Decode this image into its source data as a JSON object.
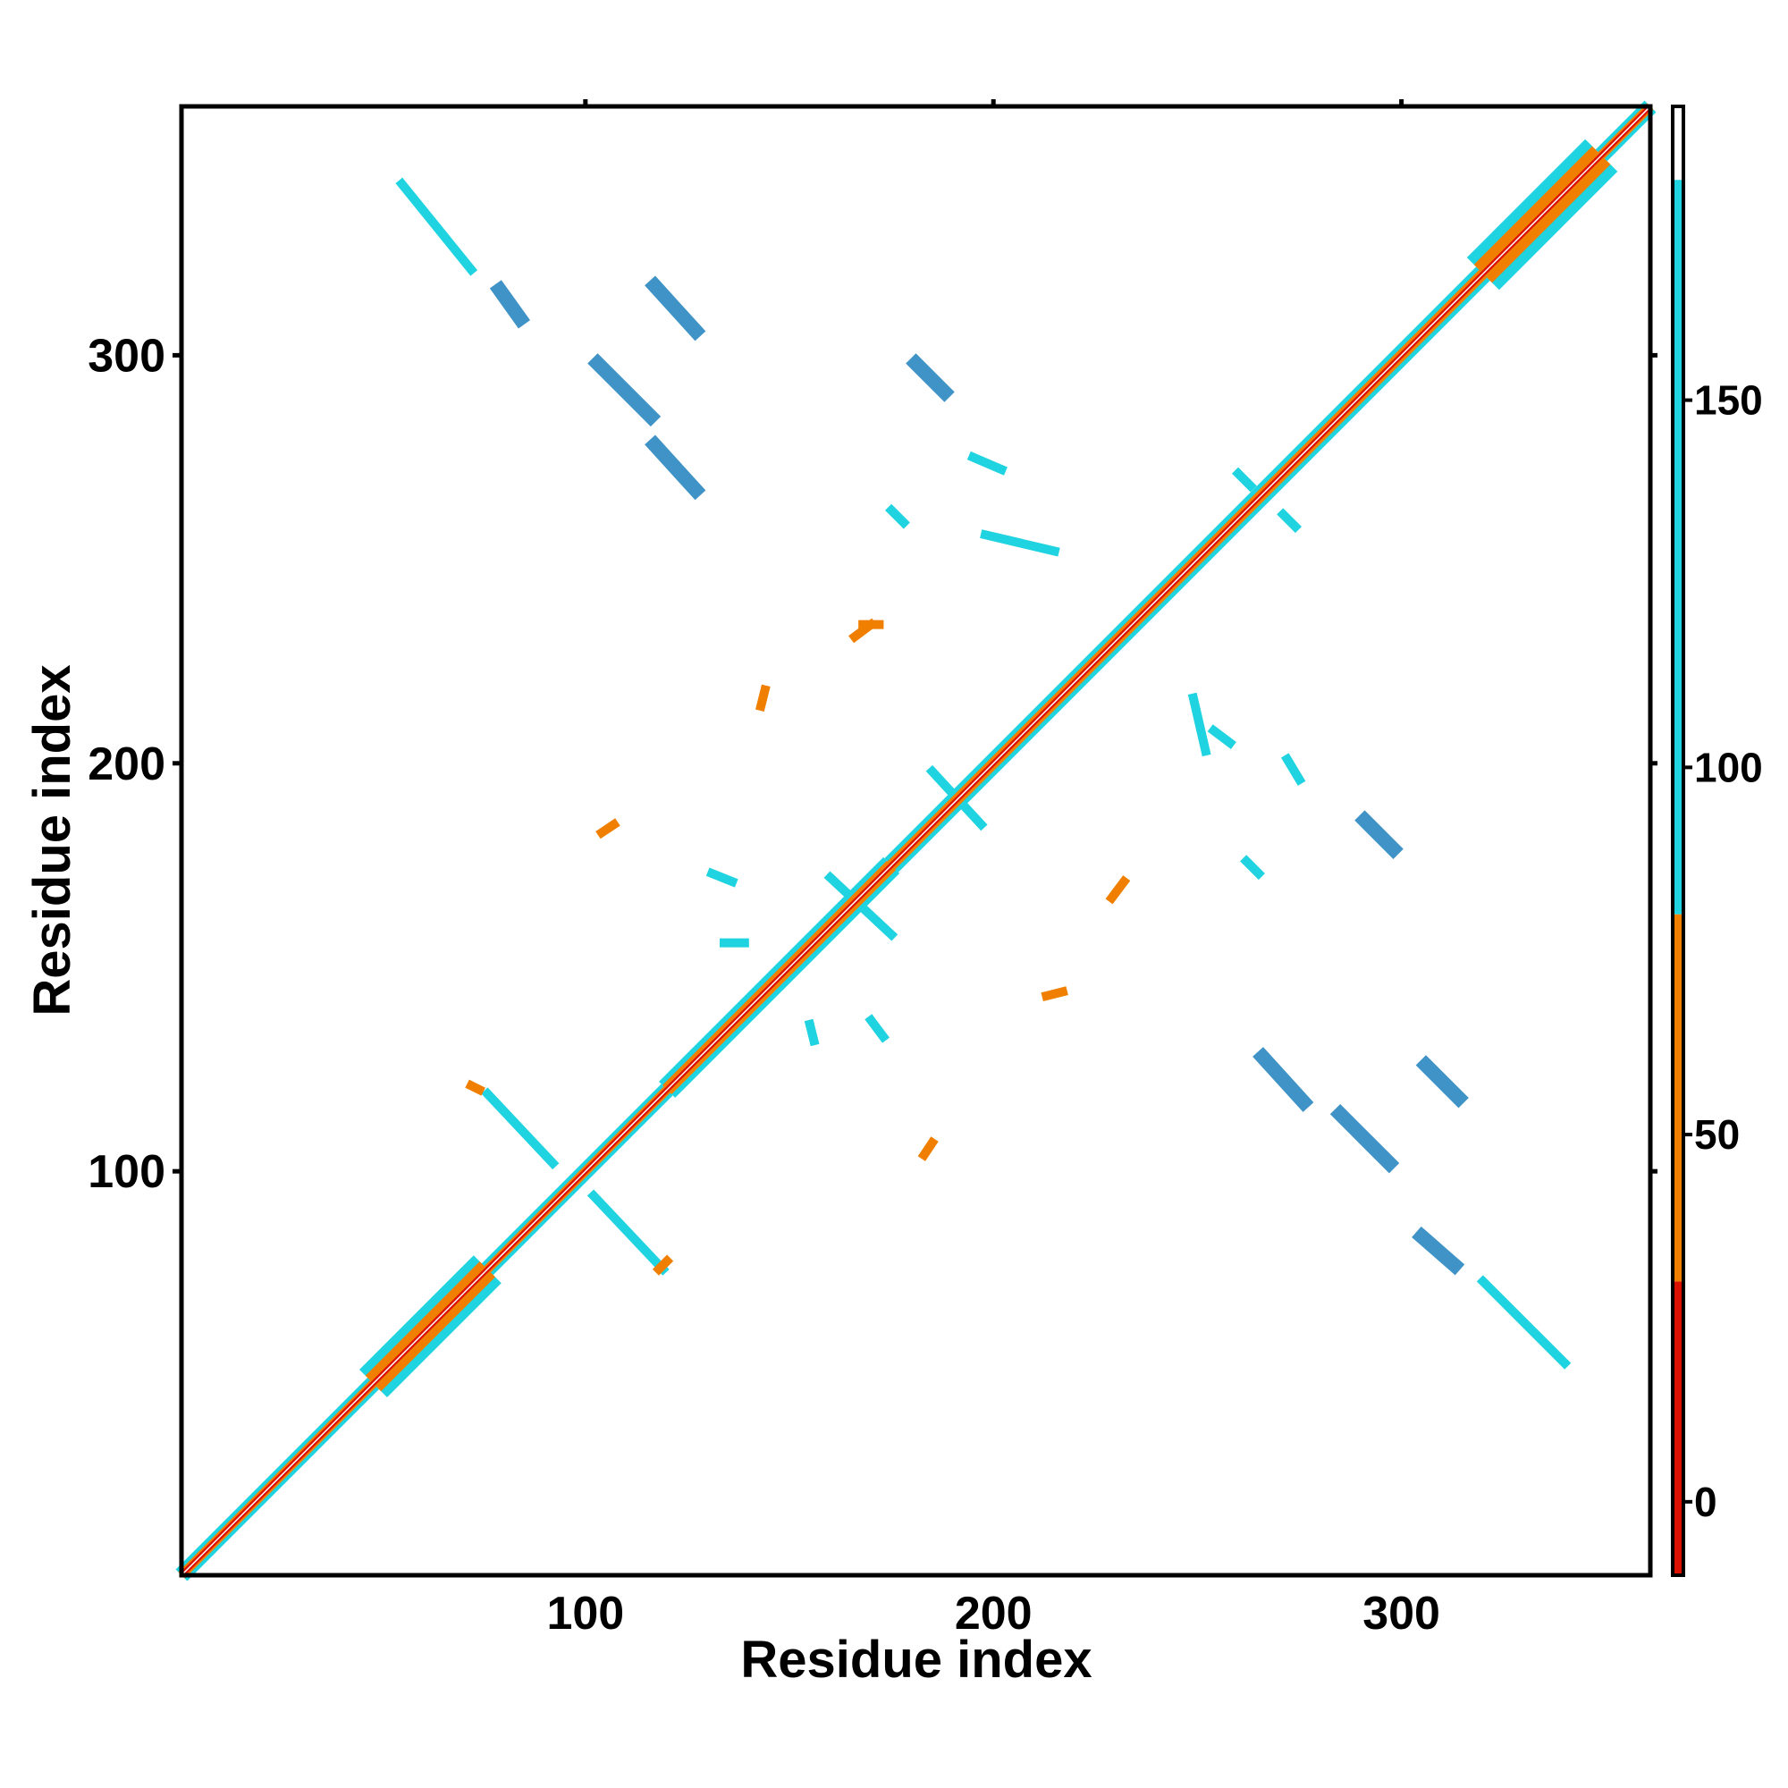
{
  "chart_data": {
    "type": "heatmap",
    "title": "",
    "xlabel": "Residue index",
    "ylabel": "Residue index",
    "xlim": [
      1,
      361
    ],
    "ylim": [
      1,
      361
    ],
    "x_ticks": [
      100,
      200,
      300
    ],
    "y_ticks": [
      100,
      200,
      300
    ],
    "grid": false,
    "legend": "colorbar-right",
    "colorbar": {
      "range": [
        -10,
        190
      ],
      "ticks": [
        0,
        50,
        100,
        150
      ],
      "stops": [
        {
          "from": -10,
          "to": 30,
          "color": "#dd1100"
        },
        {
          "from": 30,
          "to": 80,
          "color": "#f07f00"
        },
        {
          "from": 80,
          "to": 180,
          "color": "#1fd3e0"
        },
        {
          "from": 180,
          "to": 190,
          "color": "#ffffff"
        }
      ]
    },
    "diagonal": {
      "from": 1,
      "to": 361,
      "bands": [
        {
          "start": 1,
          "end": 48,
          "width": 2.5
        },
        {
          "start": 48,
          "end": 76,
          "width": 6
        },
        {
          "start": 76,
          "end": 120,
          "width": 2.5
        },
        {
          "start": 120,
          "end": 175,
          "width": 3.5
        },
        {
          "start": 175,
          "end": 320,
          "width": 3
        },
        {
          "start": 320,
          "end": 349,
          "width": 7
        },
        {
          "start": 349,
          "end": 361,
          "width": 2.5
        }
      ]
    },
    "contacts": [
      {
        "name": "segment-1",
        "x1": 79,
        "y1": 316,
        "x2": 84,
        "y2": 309,
        "value": 160
      },
      {
        "name": "segment-2",
        "x1": 117,
        "y1": 317,
        "x2": 127,
        "y2": 306,
        "value": 160
      },
      {
        "name": "segment-3",
        "x1": 103,
        "y1": 298,
        "x2": 116,
        "y2": 285,
        "value": 160
      },
      {
        "name": "segment-4",
        "x1": 117,
        "y1": 278,
        "x2": 127,
        "y2": 267,
        "value": 160
      },
      {
        "name": "segment-5",
        "x1": 181,
        "y1": 298,
        "x2": 188,
        "y2": 291,
        "value": 160
      },
      {
        "name": "segment-6",
        "x1": 55,
        "y1": 342,
        "x2": 72,
        "y2": 321,
        "value": 100
      },
      {
        "name": "segment-7",
        "x1": 185,
        "y1": 198,
        "x2": 197,
        "y2": 185,
        "value": 120
      },
      {
        "name": "segment-8",
        "x1": 160,
        "y1": 172,
        "x2": 175,
        "y2": 158,
        "value": 120
      },
      {
        "name": "segment-9",
        "x1": 291,
        "y1": 186,
        "x2": 298,
        "y2": 179,
        "value": 160
      },
      {
        "name": "segment-10",
        "x1": 266,
        "y1": 128,
        "x2": 276,
        "y2": 117,
        "value": 160
      },
      {
        "name": "segment-11",
        "x1": 306,
        "y1": 126,
        "x2": 314,
        "y2": 118,
        "value": 160
      },
      {
        "name": "segment-12",
        "x1": 285,
        "y1": 114,
        "x2": 297,
        "y2": 102,
        "value": 160
      },
      {
        "name": "segment-13",
        "x1": 305,
        "y1": 84,
        "x2": 313,
        "y2": 77,
        "value": 160
      },
      {
        "name": "segment-14",
        "x1": 320,
        "y1": 73,
        "x2": 340,
        "y2": 53,
        "value": 100
      },
      {
        "name": "segment-15",
        "x1": 76,
        "y1": 119,
        "x2": 92,
        "y2": 102,
        "value": 110
      },
      {
        "name": "segment-16",
        "x1": 102,
        "y1": 94,
        "x2": 119,
        "y2": 76,
        "value": 110
      },
      {
        "name": "segment-17",
        "x1": 166,
        "y1": 231,
        "x2": 170,
        "y2": 234,
        "value": 50
      },
      {
        "name": "segment-18",
        "x1": 143,
        "y1": 214,
        "x2": 144,
        "y2": 218,
        "value": 50
      },
      {
        "name": "segment-19",
        "x1": 229,
        "y1": 167,
        "x2": 232,
        "y2": 171,
        "value": 50
      },
      {
        "name": "segment-20",
        "x1": 213,
        "y1": 143,
        "x2": 217,
        "y2": 144,
        "value": 50
      },
      {
        "name": "segment-21",
        "x1": 183,
        "y1": 104,
        "x2": 185,
        "y2": 107,
        "value": 40
      },
      {
        "name": "segment-22",
        "x1": 104,
        "y1": 183,
        "x2": 107,
        "y2": 185,
        "value": 40
      },
      {
        "name": "segment-23",
        "x1": 195,
        "y1": 275,
        "x2": 202,
        "y2": 272,
        "value": 110
      },
      {
        "name": "segment-24",
        "x1": 272,
        "y1": 201,
        "x2": 275,
        "y2": 196,
        "value": 110
      },
      {
        "name": "segment-25",
        "x1": 249,
        "y1": 216,
        "x2": 252,
        "y2": 203,
        "value": 110
      },
      {
        "name": "segment-26",
        "x1": 198,
        "y1": 256,
        "x2": 215,
        "y2": 252,
        "value": 110
      },
      {
        "name": "segment-27",
        "x1": 175,
        "y1": 262,
        "x2": 178,
        "y2": 259,
        "value": 110
      },
      {
        "name": "segment-28",
        "x1": 134,
        "y1": 156,
        "x2": 139,
        "y2": 156,
        "value": 110
      },
      {
        "name": "segment-29",
        "x1": 131,
        "y1": 173,
        "x2": 136,
        "y2": 171,
        "value": 90
      },
      {
        "name": "segment-30",
        "x1": 155,
        "y1": 136,
        "x2": 156,
        "y2": 132,
        "value": 110
      },
      {
        "name": "segment-31",
        "x1": 170,
        "y1": 137,
        "x2": 173,
        "y2": 133,
        "value": 90
      },
      {
        "name": "segment-32",
        "x1": 262,
        "y1": 176,
        "x2": 265,
        "y2": 173,
        "value": 110
      },
      {
        "name": "segment-33",
        "x1": 260,
        "y1": 271,
        "x2": 263,
        "y2": 268,
        "value": 110
      },
      {
        "name": "segment-34",
        "x1": 271,
        "y1": 261,
        "x2": 274,
        "y2": 258,
        "value": 110
      },
      {
        "name": "segment-35",
        "x1": 254,
        "y1": 208,
        "x2": 258,
        "y2": 205,
        "value": 90
      },
      {
        "name": "segment-36",
        "x1": 168,
        "y1": 234,
        "x2": 172,
        "y2": 234,
        "value": 50
      },
      {
        "name": "segment-37",
        "x1": 72,
        "y1": 121,
        "x2": 74,
        "y2": 120,
        "value": 40
      },
      {
        "name": "segment-38",
        "x1": 118,
        "y1": 76,
        "x2": 120,
        "y2": 78,
        "value": 40
      }
    ]
  }
}
